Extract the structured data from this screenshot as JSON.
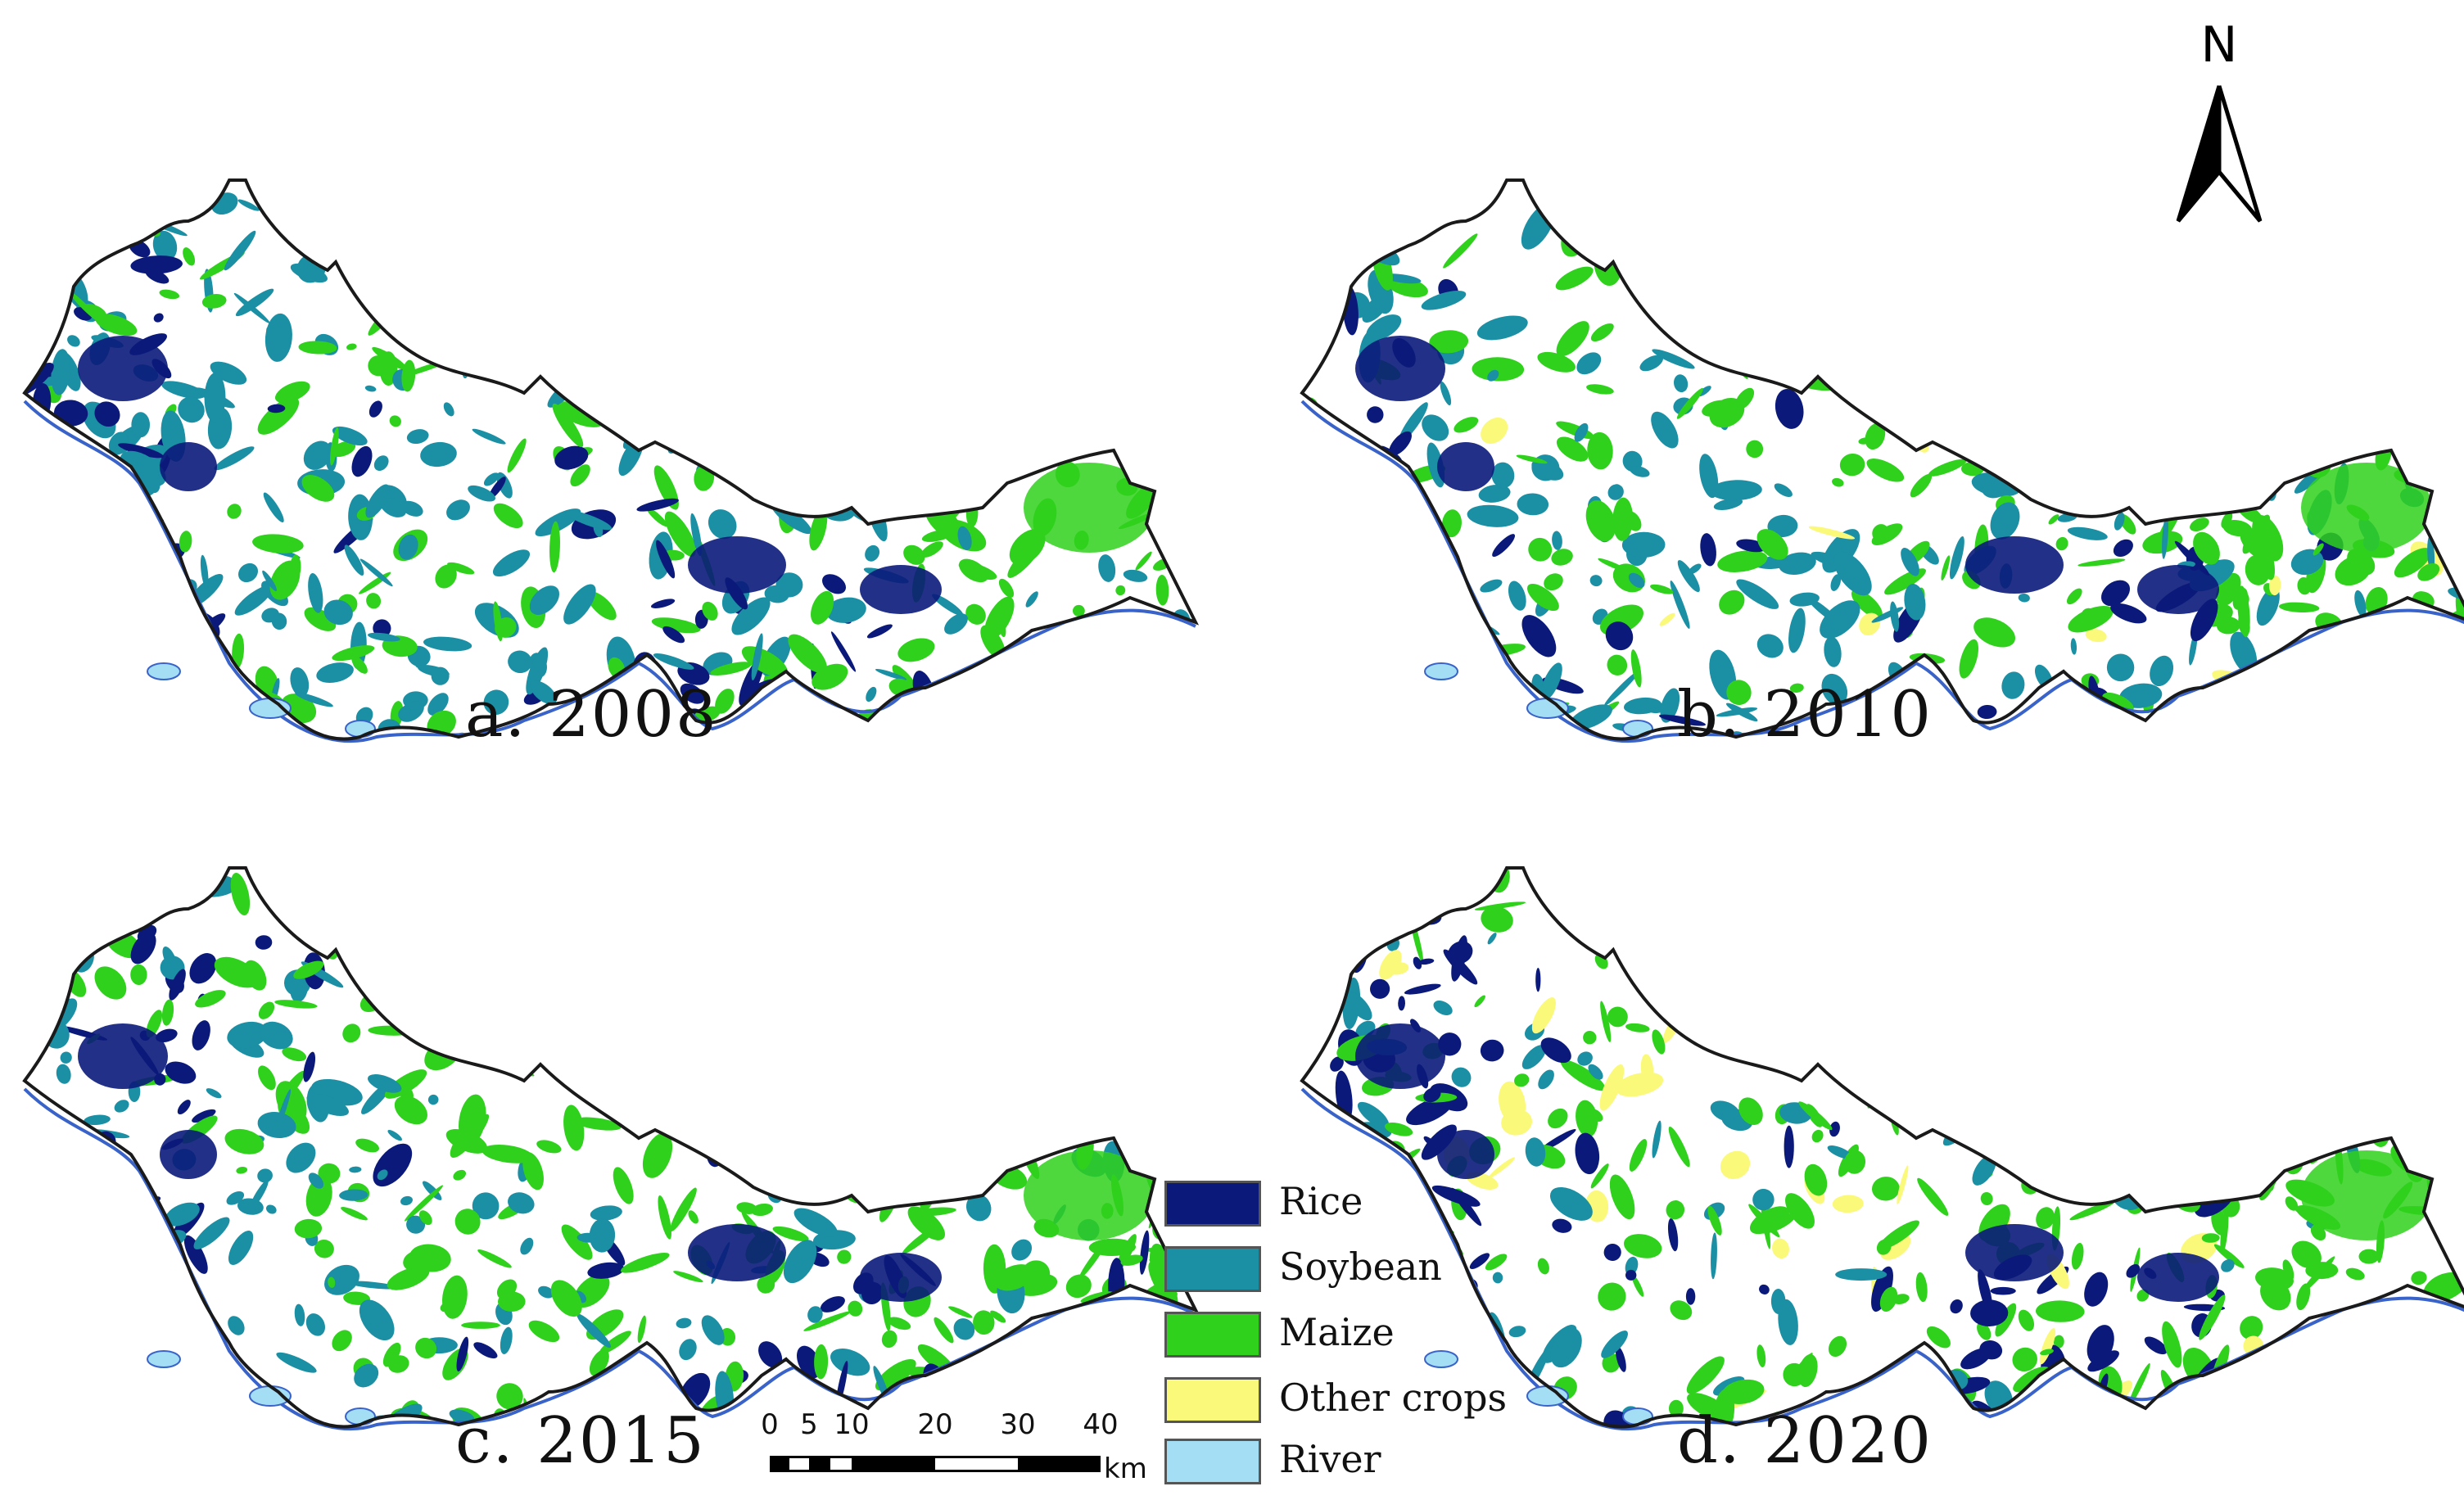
{
  "panels": [
    {
      "caption": "a. 2008"
    },
    {
      "caption": "b. 2010"
    },
    {
      "caption": "c. 2015"
    },
    {
      "caption": "d. 2020"
    }
  ],
  "legend": [
    {
      "label": "Rice",
      "color": "#0b1a7a"
    },
    {
      "label": "Soybean",
      "color": "#1b8fa3"
    },
    {
      "label": "Maize",
      "color": "#2fd11c"
    },
    {
      "label": "Other crops",
      "color": "#fbf97a"
    },
    {
      "label": "River",
      "color": "#a3def5"
    }
  ],
  "scale_bar": {
    "ticks": [
      "0",
      "5",
      "10",
      "20",
      "30",
      "40"
    ],
    "unit": "km"
  },
  "north_arrow": {
    "label": "N"
  },
  "colors": {
    "boundary": "#1a1a1a",
    "river_line": "#3a63c9",
    "background": "#ffffff"
  }
}
